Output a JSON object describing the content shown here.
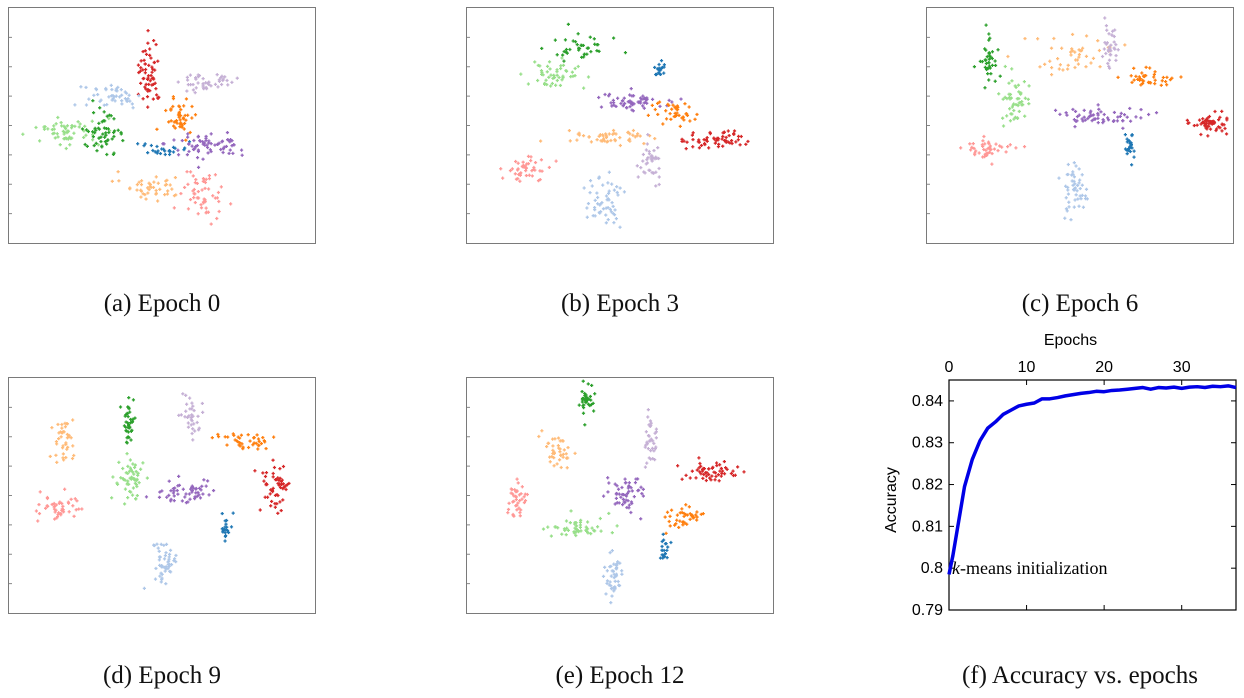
{
  "captions": {
    "a": "(a) Epoch 0",
    "b": "(b) Epoch 3",
    "c": "(c) Epoch 6",
    "d": "(d) Epoch 9",
    "e": "(e) Epoch 12",
    "f": "(f) Accuracy vs. epochs"
  },
  "palette": {
    "dark_blue": "#1f77b4",
    "light_blue": "#aec7e8",
    "orange": "#ff7f0e",
    "light_orange": "#ffbb78",
    "green": "#2ca02c",
    "light_green": "#98df8a",
    "red": "#d62728",
    "pink": "#ff9896",
    "purple": "#9467bd",
    "lavender": "#c5b0d5"
  },
  "chart_data": [
    {
      "type": "scatter",
      "panel": "a",
      "clusters": [
        {
          "color": "red",
          "cx": 0.46,
          "cy": 0.28,
          "sx": 0.018,
          "sy": 0.07,
          "n": 60
        },
        {
          "color": "lavender",
          "cx": 0.64,
          "cy": 0.31,
          "sx": 0.05,
          "sy": 0.02,
          "n": 45
        },
        {
          "color": "light_blue",
          "cx": 0.33,
          "cy": 0.38,
          "sx": 0.05,
          "sy": 0.03,
          "n": 45
        },
        {
          "color": "orange",
          "cx": 0.56,
          "cy": 0.47,
          "sx": 0.022,
          "sy": 0.04,
          "n": 45
        },
        {
          "color": "light_green",
          "cx": 0.19,
          "cy": 0.53,
          "sx": 0.05,
          "sy": 0.03,
          "n": 60
        },
        {
          "color": "green",
          "cx": 0.31,
          "cy": 0.53,
          "sx": 0.035,
          "sy": 0.04,
          "n": 55
        },
        {
          "color": "dark_blue",
          "cx": 0.5,
          "cy": 0.6,
          "sx": 0.04,
          "sy": 0.012,
          "n": 25
        },
        {
          "color": "purple",
          "cx": 0.65,
          "cy": 0.58,
          "sx": 0.07,
          "sy": 0.03,
          "n": 70
        },
        {
          "color": "light_orange",
          "cx": 0.47,
          "cy": 0.76,
          "sx": 0.05,
          "sy": 0.025,
          "n": 45
        },
        {
          "color": "pink",
          "cx": 0.64,
          "cy": 0.8,
          "sx": 0.035,
          "sy": 0.05,
          "n": 55
        }
      ]
    },
    {
      "type": "scatter",
      "panel": "b",
      "clusters": [
        {
          "color": "green",
          "cx": 0.36,
          "cy": 0.17,
          "sx": 0.05,
          "sy": 0.025,
          "n": 40
        },
        {
          "color": "light_green",
          "cx": 0.28,
          "cy": 0.28,
          "sx": 0.05,
          "sy": 0.03,
          "n": 50
        },
        {
          "color": "dark_blue",
          "cx": 0.63,
          "cy": 0.26,
          "sx": 0.008,
          "sy": 0.02,
          "n": 20
        },
        {
          "color": "purple",
          "cx": 0.55,
          "cy": 0.4,
          "sx": 0.07,
          "sy": 0.02,
          "n": 60
        },
        {
          "color": "orange",
          "cx": 0.68,
          "cy": 0.45,
          "sx": 0.03,
          "sy": 0.03,
          "n": 40
        },
        {
          "color": "light_orange",
          "cx": 0.45,
          "cy": 0.55,
          "sx": 0.08,
          "sy": 0.015,
          "n": 50
        },
        {
          "color": "red",
          "cx": 0.8,
          "cy": 0.56,
          "sx": 0.05,
          "sy": 0.02,
          "n": 60
        },
        {
          "color": "lavender",
          "cx": 0.6,
          "cy": 0.65,
          "sx": 0.02,
          "sy": 0.05,
          "n": 40
        },
        {
          "color": "pink",
          "cx": 0.2,
          "cy": 0.68,
          "sx": 0.04,
          "sy": 0.03,
          "n": 45
        },
        {
          "color": "light_blue",
          "cx": 0.45,
          "cy": 0.83,
          "sx": 0.03,
          "sy": 0.05,
          "n": 55
        }
      ]
    },
    {
      "type": "scatter",
      "panel": "c",
      "clusters": [
        {
          "color": "green",
          "cx": 0.2,
          "cy": 0.23,
          "sx": 0.015,
          "sy": 0.05,
          "n": 40
        },
        {
          "color": "light_green",
          "cx": 0.29,
          "cy": 0.39,
          "sx": 0.025,
          "sy": 0.05,
          "n": 50
        },
        {
          "color": "light_orange",
          "cx": 0.49,
          "cy": 0.2,
          "sx": 0.06,
          "sy": 0.04,
          "n": 45
        },
        {
          "color": "lavender",
          "cx": 0.6,
          "cy": 0.16,
          "sx": 0.015,
          "sy": 0.04,
          "n": 35
        },
        {
          "color": "orange",
          "cx": 0.72,
          "cy": 0.3,
          "sx": 0.04,
          "sy": 0.02,
          "n": 40
        },
        {
          "color": "purple",
          "cx": 0.56,
          "cy": 0.46,
          "sx": 0.07,
          "sy": 0.02,
          "n": 60
        },
        {
          "color": "red",
          "cx": 0.93,
          "cy": 0.49,
          "sx": 0.03,
          "sy": 0.02,
          "n": 55
        },
        {
          "color": "dark_blue",
          "cx": 0.66,
          "cy": 0.58,
          "sx": 0.01,
          "sy": 0.03,
          "n": 25
        },
        {
          "color": "pink",
          "cx": 0.2,
          "cy": 0.6,
          "sx": 0.04,
          "sy": 0.025,
          "n": 45
        },
        {
          "color": "light_blue",
          "cx": 0.48,
          "cy": 0.77,
          "sx": 0.02,
          "sy": 0.05,
          "n": 50
        }
      ]
    },
    {
      "type": "scatter",
      "panel": "d",
      "clusters": [
        {
          "color": "light_orange",
          "cx": 0.18,
          "cy": 0.27,
          "sx": 0.015,
          "sy": 0.05,
          "n": 40
        },
        {
          "color": "green",
          "cx": 0.39,
          "cy": 0.2,
          "sx": 0.01,
          "sy": 0.05,
          "n": 40
        },
        {
          "color": "lavender",
          "cx": 0.59,
          "cy": 0.16,
          "sx": 0.015,
          "sy": 0.05,
          "n": 35
        },
        {
          "color": "orange",
          "cx": 0.76,
          "cy": 0.26,
          "sx": 0.04,
          "sy": 0.02,
          "n": 40
        },
        {
          "color": "light_green",
          "cx": 0.4,
          "cy": 0.43,
          "sx": 0.025,
          "sy": 0.05,
          "n": 55
        },
        {
          "color": "red",
          "cx": 0.87,
          "cy": 0.47,
          "sx": 0.02,
          "sy": 0.05,
          "n": 55
        },
        {
          "color": "purple",
          "cx": 0.58,
          "cy": 0.49,
          "sx": 0.05,
          "sy": 0.03,
          "n": 55
        },
        {
          "color": "pink",
          "cx": 0.17,
          "cy": 0.55,
          "sx": 0.04,
          "sy": 0.03,
          "n": 45
        },
        {
          "color": "dark_blue",
          "cx": 0.71,
          "cy": 0.64,
          "sx": 0.008,
          "sy": 0.03,
          "n": 20
        },
        {
          "color": "light_blue",
          "cx": 0.51,
          "cy": 0.79,
          "sx": 0.02,
          "sy": 0.05,
          "n": 50
        }
      ]
    },
    {
      "type": "scatter",
      "panel": "e",
      "clusters": [
        {
          "color": "green",
          "cx": 0.39,
          "cy": 0.1,
          "sx": 0.01,
          "sy": 0.04,
          "n": 35
        },
        {
          "color": "lavender",
          "cx": 0.6,
          "cy": 0.27,
          "sx": 0.012,
          "sy": 0.05,
          "n": 35
        },
        {
          "color": "light_orange",
          "cx": 0.29,
          "cy": 0.32,
          "sx": 0.03,
          "sy": 0.04,
          "n": 40
        },
        {
          "color": "red",
          "cx": 0.8,
          "cy": 0.4,
          "sx": 0.04,
          "sy": 0.02,
          "n": 55
        },
        {
          "color": "purple",
          "cx": 0.52,
          "cy": 0.49,
          "sx": 0.03,
          "sy": 0.04,
          "n": 55
        },
        {
          "color": "pink",
          "cx": 0.16,
          "cy": 0.52,
          "sx": 0.015,
          "sy": 0.04,
          "n": 40
        },
        {
          "color": "orange",
          "cx": 0.71,
          "cy": 0.59,
          "sx": 0.03,
          "sy": 0.02,
          "n": 40
        },
        {
          "color": "light_green",
          "cx": 0.35,
          "cy": 0.64,
          "sx": 0.05,
          "sy": 0.025,
          "n": 50
        },
        {
          "color": "dark_blue",
          "cx": 0.64,
          "cy": 0.73,
          "sx": 0.008,
          "sy": 0.03,
          "n": 20
        },
        {
          "color": "light_blue",
          "cx": 0.48,
          "cy": 0.85,
          "sx": 0.015,
          "sy": 0.05,
          "n": 45
        }
      ]
    },
    {
      "type": "line",
      "panel": "f",
      "xlabel": "Epochs",
      "ylabel": "Accuracy",
      "x_axis_position": "top",
      "xlim": [
        0,
        37
      ],
      "ylim": [
        0.79,
        0.845
      ],
      "xticks": [
        0,
        10,
        20,
        30
      ],
      "yticks": [
        0.79,
        0.8,
        0.81,
        0.82,
        0.83,
        0.84
      ],
      "ytick_labels": [
        "0.79",
        "0.8",
        "0.81",
        "0.82",
        "0.83",
        "0.84"
      ],
      "annotation": {
        "italic": "k",
        "text": "-means initialization",
        "x": 0,
        "y": 0.8
      },
      "series": [
        {
          "color": "#0000e6",
          "x": [
            0,
            0.5,
            1,
            1.5,
            2,
            3,
            4,
            5,
            6,
            7,
            8,
            9,
            10,
            11,
            12,
            13,
            14,
            15,
            16,
            17,
            18,
            19,
            20,
            21,
            22,
            23,
            24,
            25,
            26,
            27,
            28,
            29,
            30,
            31,
            32,
            33,
            34,
            35,
            36,
            37
          ],
          "y": [
            0.7985,
            0.803,
            0.8085,
            0.814,
            0.8195,
            0.826,
            0.8305,
            0.8335,
            0.835,
            0.8368,
            0.8378,
            0.8388,
            0.8392,
            0.8395,
            0.8405,
            0.8405,
            0.8408,
            0.8412,
            0.8415,
            0.8418,
            0.842,
            0.8423,
            0.8422,
            0.8425,
            0.8426,
            0.8428,
            0.843,
            0.8432,
            0.8428,
            0.8432,
            0.8431,
            0.8433,
            0.843,
            0.8433,
            0.8434,
            0.8432,
            0.8435,
            0.8434,
            0.8436,
            0.8432
          ]
        }
      ]
    }
  ]
}
